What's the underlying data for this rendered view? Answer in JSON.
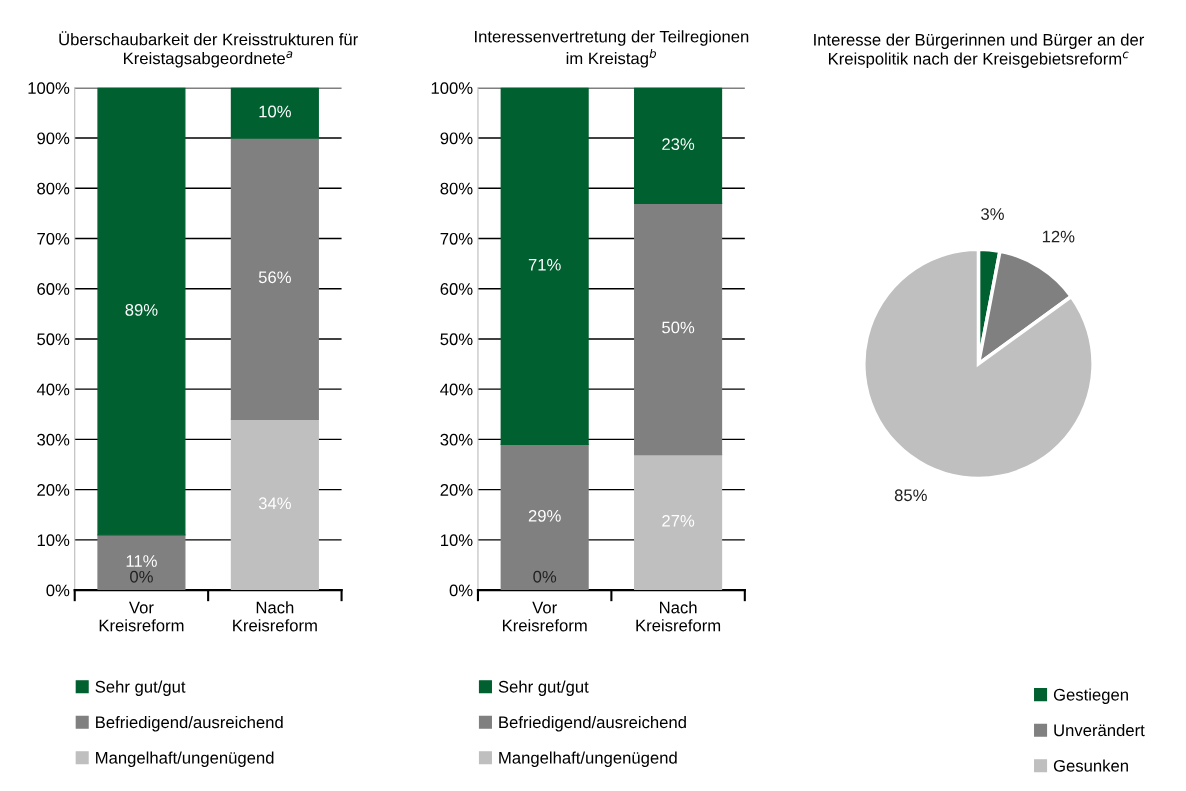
{
  "chart_data": [
    {
      "type": "bar",
      "title": "Überschaubarkeit der Kreisstrukturen für\nKreistagsabgeordnete$^{a}$",
      "categories": [
        "Vor\nKreisreform",
        "Nach\nKreisreform"
      ],
      "stacked": true,
      "series": [
        {
          "name": "Mangelhaft/ungenügend",
          "color": "#bfbfbf",
          "values": [
            0,
            34
          ],
          "value_labels": [
            "0%",
            "34%"
          ]
        },
        {
          "name": "Befriedigend/ausreichend",
          "color": "#808080",
          "values": [
            11,
            56
          ],
          "value_labels": [
            "11%",
            "56%"
          ]
        },
        {
          "name": "Sehr gut/gut",
          "color": "#006030",
          "values": [
            89,
            10
          ],
          "value_labels": [
            "89%",
            "10%"
          ]
        }
      ],
      "ylim": [
        0,
        100
      ],
      "yticks": [
        {
          "value": 0,
          "label": "0%"
        },
        {
          "value": 10,
          "label": "10%"
        },
        {
          "value": 20,
          "label": "20%"
        },
        {
          "value": 30,
          "label": "30%"
        },
        {
          "value": 40,
          "label": "40%"
        },
        {
          "value": 50,
          "label": "50%"
        },
        {
          "value": 60,
          "label": "60%"
        },
        {
          "value": 70,
          "label": "70%"
        },
        {
          "value": 80,
          "label": "80%"
        },
        {
          "value": 90,
          "label": "90%"
        },
        {
          "value": 100,
          "label": "100%"
        }
      ],
      "grid": "y",
      "legend": "bottom"
    },
    {
      "type": "bar",
      "title": "Interessenvertretung der Teilregionen\nim Kreistag$^{b}$",
      "categories": [
        "Vor\nKreisreform",
        "Nach\nKreisreform"
      ],
      "stacked": true,
      "series": [
        {
          "name": "Mangelhaft/ungenügend",
          "color": "#bfbfbf",
          "values": [
            0,
            27
          ],
          "value_labels": [
            "0%",
            "27%"
          ]
        },
        {
          "name": "Befriedigend/ausreichend",
          "color": "#808080",
          "values": [
            29,
            50
          ],
          "value_labels": [
            "29%",
            "50%"
          ]
        },
        {
          "name": "Sehr gut/gut",
          "color": "#006030",
          "values": [
            71,
            23
          ],
          "value_labels": [
            "71%",
            "23%"
          ]
        }
      ],
      "ylim": [
        0,
        100
      ],
      "yticks": [
        {
          "value": 0,
          "label": "0%"
        },
        {
          "value": 10,
          "label": "10%"
        },
        {
          "value": 20,
          "label": "20%"
        },
        {
          "value": 30,
          "label": "30%"
        },
        {
          "value": 40,
          "label": "40%"
        },
        {
          "value": 50,
          "label": "50%"
        },
        {
          "value": 60,
          "label": "60%"
        },
        {
          "value": 70,
          "label": "70%"
        },
        {
          "value": 80,
          "label": "80%"
        },
        {
          "value": 90,
          "label": "90%"
        },
        {
          "value": 100,
          "label": "100%"
        }
      ],
      "grid": "y",
      "legend": "bottom"
    },
    {
      "type": "pie",
      "title": "Interesse der Bürgerinnen und Bürger an der\nKreispolitik nach der Kreisgebietsreform$^{c}$",
      "categories": [
        "Gestiegen",
        "Unverändert",
        "Gesunken"
      ],
      "values": [
        3,
        12,
        85
      ],
      "colors": [
        "#006030",
        "#808080",
        "#bfbfbf"
      ],
      "value_labels": [
        "3%",
        "12%",
        "85%"
      ],
      "legend": "bottom"
    }
  ]
}
